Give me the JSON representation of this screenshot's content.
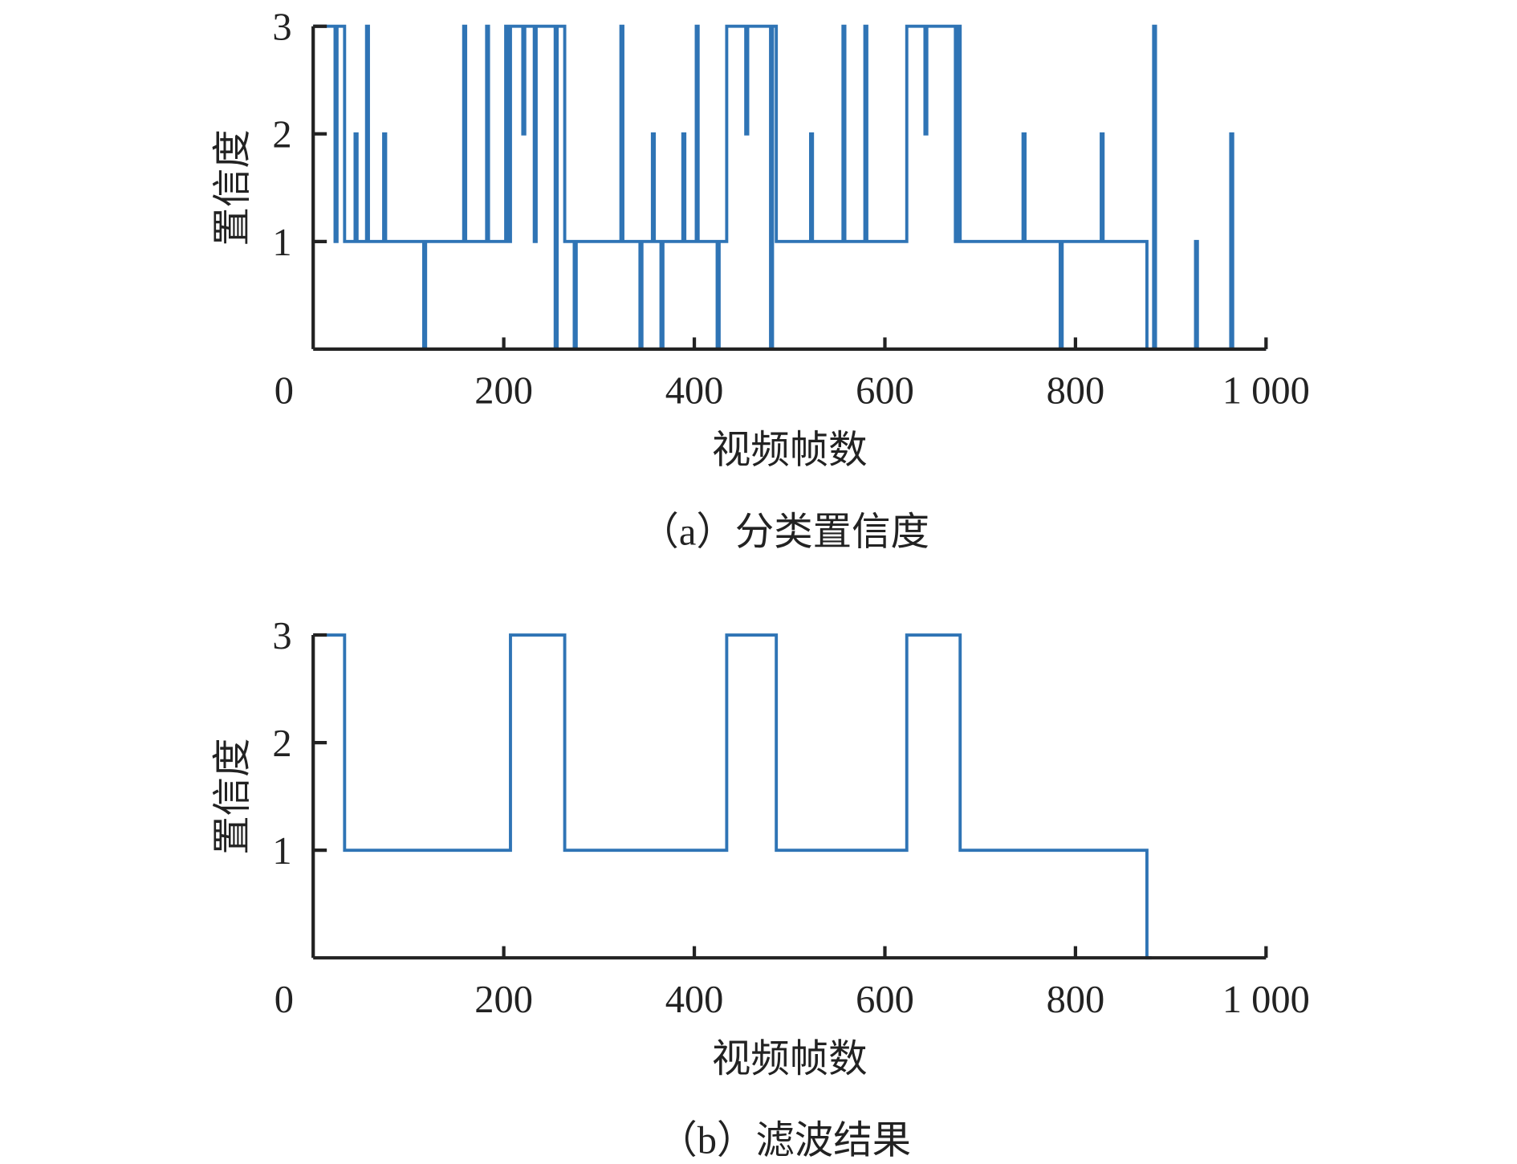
{
  "line_color": "#2f74b5",
  "axis_color": "#222222",
  "chart_data": [
    {
      "type": "line",
      "caption": "（a）分类置信度",
      "xlabel": "视频帧数",
      "ylabel": "置信度",
      "xlim": [
        0,
        1000
      ],
      "ylim": [
        0,
        3
      ],
      "xticks": [
        0,
        200,
        400,
        600,
        800,
        1000
      ],
      "xtick_labels": [
        "0",
        "200",
        "400",
        "600",
        "800",
        "1 000"
      ],
      "yticks": [
        1,
        2,
        3
      ],
      "ytick_labels": [
        "1",
        "2",
        "3"
      ],
      "grid": false,
      "base_steps": [
        [
          0,
          33,
          3
        ],
        [
          33,
          207,
          1
        ],
        [
          207,
          264,
          3
        ],
        [
          264,
          434,
          1
        ],
        [
          434,
          486,
          3
        ],
        [
          486,
          623,
          1
        ],
        [
          623,
          679,
          3
        ],
        [
          679,
          875,
          1
        ],
        [
          875,
          1000,
          0
        ]
      ],
      "spikes": [
        {
          "x": 23,
          "y": 1
        },
        {
          "x": 44,
          "y": 2
        },
        {
          "x": 56,
          "y": 3
        },
        {
          "x": 74,
          "y": 2
        },
        {
          "x": 116,
          "y": 0
        },
        {
          "x": 158,
          "y": 3
        },
        {
          "x": 182,
          "y": 3
        },
        {
          "x": 202,
          "y": 3
        },
        {
          "x": 220,
          "y": 2
        },
        {
          "x": 232,
          "y": 1
        },
        {
          "x": 254,
          "y": 0
        },
        {
          "x": 274,
          "y": 0
        },
        {
          "x": 323,
          "y": 3
        },
        {
          "x": 343,
          "y": 0
        },
        {
          "x": 356,
          "y": 2
        },
        {
          "x": 365,
          "y": 0
        },
        {
          "x": 388,
          "y": 2
        },
        {
          "x": 402,
          "y": 3
        },
        {
          "x": 424,
          "y": 0
        },
        {
          "x": 454,
          "y": 2
        },
        {
          "x": 480,
          "y": 0
        },
        {
          "x": 522,
          "y": 2
        },
        {
          "x": 556,
          "y": 3
        },
        {
          "x": 579,
          "y": 3
        },
        {
          "x": 642,
          "y": 2
        },
        {
          "x": 674,
          "y": 1
        },
        {
          "x": 745,
          "y": 2
        },
        {
          "x": 784,
          "y": 0
        },
        {
          "x": 827,
          "y": 2
        },
        {
          "x": 882,
          "y": 3
        },
        {
          "x": 926,
          "y": 1
        },
        {
          "x": 963,
          "y": 2
        }
      ]
    },
    {
      "type": "line",
      "caption": "（b）滤波结果",
      "xlabel": "视频帧数",
      "ylabel": "置信度",
      "xlim": [
        0,
        1000
      ],
      "ylim": [
        0,
        3
      ],
      "xticks": [
        0,
        200,
        400,
        600,
        800,
        1000
      ],
      "xtick_labels": [
        "0",
        "200",
        "400",
        "600",
        "800",
        "1 000"
      ],
      "yticks": [
        1,
        2,
        3
      ],
      "ytick_labels": [
        "1",
        "2",
        "3"
      ],
      "grid": false,
      "base_steps": [
        [
          0,
          33,
          3
        ],
        [
          33,
          207,
          1
        ],
        [
          207,
          264,
          3
        ],
        [
          264,
          434,
          1
        ],
        [
          434,
          486,
          3
        ],
        [
          486,
          623,
          1
        ],
        [
          623,
          679,
          3
        ],
        [
          679,
          875,
          1
        ],
        [
          875,
          880,
          0
        ]
      ],
      "spikes": []
    }
  ]
}
